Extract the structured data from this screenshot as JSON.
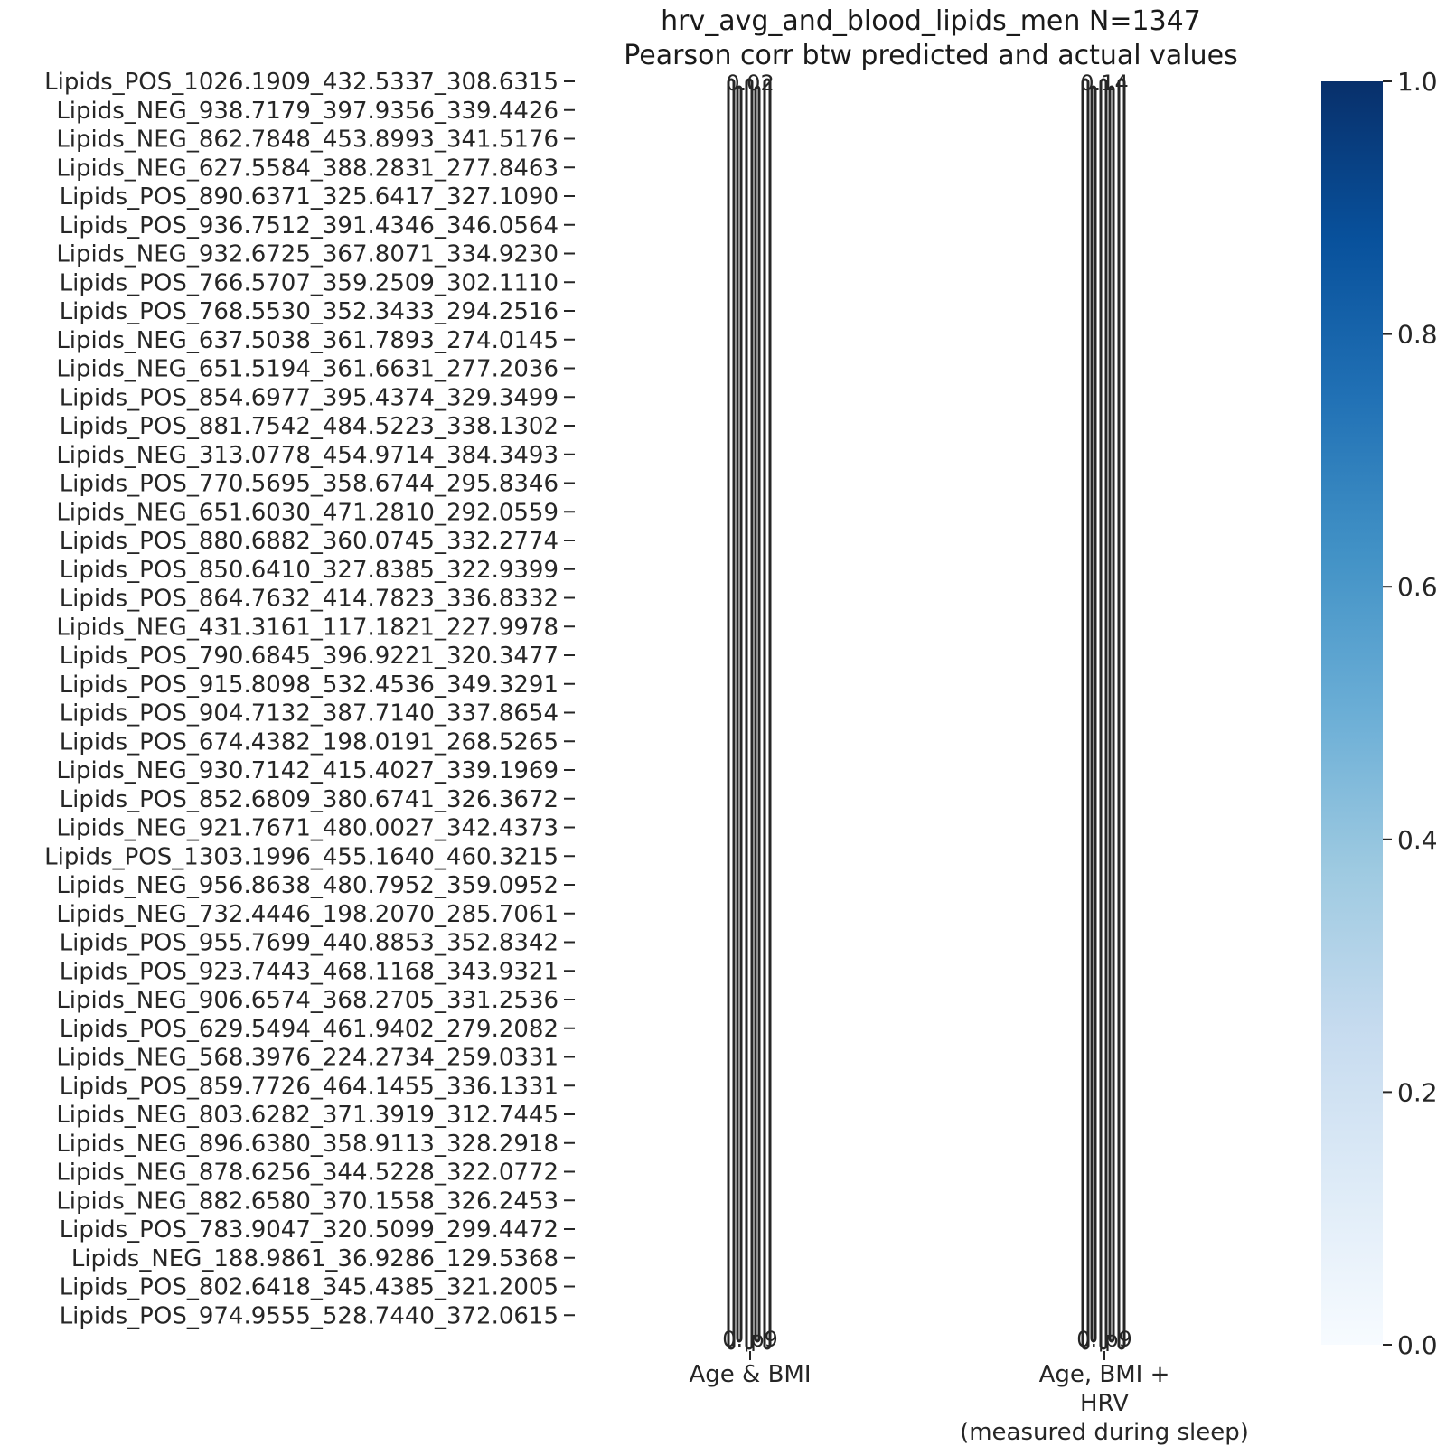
{
  "chart_data": {
    "type": "heatmap",
    "title": "hrv_avg_and_blood_lipids_men N=1347",
    "subtitle": "Pearson corr btw predicted and actual values",
    "columns": [
      [
        "Age & BMI"
      ],
      [
        "Age, BMI +",
        "HRV",
        "(measured during sleep)"
      ]
    ],
    "rows": [
      "Lipids_POS_1026.1909_432.5337_308.6315",
      "Lipids_NEG_938.7179_397.9356_339.4426",
      "Lipids_NEG_862.7848_453.8993_341.5176",
      "Lipids_NEG_627.5584_388.2831_277.8463",
      "Lipids_POS_890.6371_325.6417_327.1090",
      "Lipids_POS_936.7512_391.4346_346.0564",
      "Lipids_NEG_932.6725_367.8071_334.9230",
      "Lipids_POS_766.5707_359.2509_302.1110",
      "Lipids_POS_768.5530_352.3433_294.2516",
      "Lipids_NEG_637.5038_361.7893_274.0145",
      "Lipids_NEG_651.5194_361.6631_277.2036",
      "Lipids_POS_854.6977_395.4374_329.3499",
      "Lipids_POS_881.7542_484.5223_338.1302",
      "Lipids_NEG_313.0778_454.9714_384.3493",
      "Lipids_POS_770.5695_358.6744_295.8346",
      "Lipids_NEG_651.6030_471.2810_292.0559",
      "Lipids_POS_880.6882_360.0745_332.2774",
      "Lipids_POS_850.6410_327.8385_322.9399",
      "Lipids_POS_864.7632_414.7823_336.8332",
      "Lipids_NEG_431.3161_117.1821_227.9978",
      "Lipids_POS_790.6845_396.9221_320.3477",
      "Lipids_POS_915.8098_532.4536_349.3291",
      "Lipids_POS_904.7132_387.7140_337.8654",
      "Lipids_POS_674.4382_198.0191_268.5265",
      "Lipids_NEG_930.7142_415.4027_339.1969",
      "Lipids_POS_852.6809_380.6741_326.3672",
      "Lipids_NEG_921.7671_480.0027_342.4373",
      "Lipids_POS_1303.1996_455.1640_460.3215",
      "Lipids_NEG_956.8638_480.7952_359.0952",
      "Lipids_NEG_732.4446_198.2070_285.7061",
      "Lipids_POS_955.7699_440.8853_352.8342",
      "Lipids_POS_923.7443_468.1168_343.9321",
      "Lipids_NEG_906.6574_368.2705_331.2536",
      "Lipids_POS_629.5494_461.9402_279.2082",
      "Lipids_NEG_568.3976_224.2734_259.0331",
      "Lipids_POS_859.7726_464.1455_336.1331",
      "Lipids_NEG_803.6282_371.3919_312.7445",
      "Lipids_NEG_896.6380_358.9113_328.2918",
      "Lipids_NEG_878.6256_344.5228_322.0772",
      "Lipids_NEG_882.6580_370.1558_326.2453",
      "Lipids_POS_783.9047_320.5099_299.4472",
      "Lipids_NEG_188.9861_36.9286_129.5368",
      "Lipids_POS_802.6418_345.4385_321.2005",
      "Lipids_POS_974.9555_528.7440_372.0615"
    ],
    "cell_annotation_texts": [
      [
        "0.02",
        "0.14"
      ],
      [
        "0.0 ",
        "0.1 "
      ],
      [
        "0.|p9",
        "0.|p9"
      ]
    ],
    "colorbar": {
      "range": [
        0.0,
        1.0
      ],
      "ticks": [
        "0.0",
        "0.2",
        "0.4",
        "0.6",
        "0.8",
        "1.0"
      ],
      "colormap": "Blues",
      "color_low": "#f7fbff",
      "color_high": "#08306b"
    },
    "text_color": "#262626"
  }
}
